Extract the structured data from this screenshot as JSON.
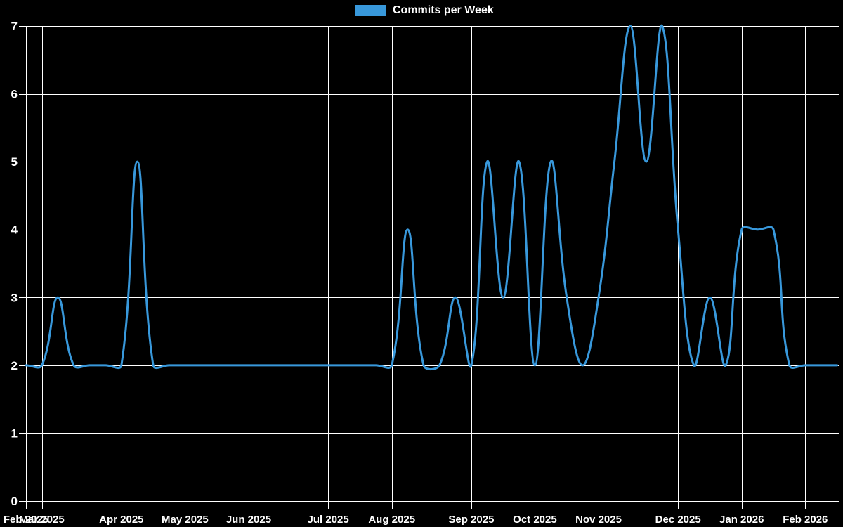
{
  "legend": {
    "label": "Commits per Week",
    "swatch_color": "#3898db"
  },
  "chart_data": {
    "type": "line",
    "title": "",
    "xlabel": "",
    "ylabel": "",
    "x_unit": "week",
    "series": [
      {
        "name": "Commits per Week",
        "color": "#3898db",
        "values": [
          2,
          2,
          3,
          2,
          2,
          2,
          2,
          5,
          2,
          2,
          2,
          2,
          2,
          2,
          2,
          2,
          2,
          2,
          2,
          2,
          2,
          2,
          2,
          2,
          4,
          2,
          2,
          3,
          2,
          5,
          3,
          5,
          2,
          5,
          3,
          2,
          3,
          5,
          7,
          5,
          7,
          4,
          2,
          3,
          2,
          4,
          4,
          4,
          2,
          2,
          2,
          2
        ]
      }
    ],
    "x_tick_labels": [
      {
        "label": "Feb 2025",
        "week": 0
      },
      {
        "label": "Mar 2025",
        "week": 1
      },
      {
        "label": "Apr 2025",
        "week": 6
      },
      {
        "label": "May 2025",
        "week": 10
      },
      {
        "label": "Jun 2025",
        "week": 14
      },
      {
        "label": "Jul 2025",
        "week": 19
      },
      {
        "label": "Aug 2025",
        "week": 23
      },
      {
        "label": "Sep 2025",
        "week": 28
      },
      {
        "label": "Oct 2025",
        "week": 32
      },
      {
        "label": "Nov 2025",
        "week": 36
      },
      {
        "label": "Dec 2025",
        "week": 41
      },
      {
        "label": "Jan 2026",
        "week": 45
      },
      {
        "label": "Feb 2026",
        "week": 49
      }
    ],
    "y_ticks": [
      0,
      1,
      2,
      3,
      4,
      5,
      6,
      7
    ],
    "ylim": [
      0,
      7
    ],
    "grid": true,
    "legend_position": "top-center",
    "background_color": "#000000",
    "grid_color": "#ffffff",
    "text_color": "#ffffff",
    "line_tension": 0.4,
    "line_width": 3
  }
}
